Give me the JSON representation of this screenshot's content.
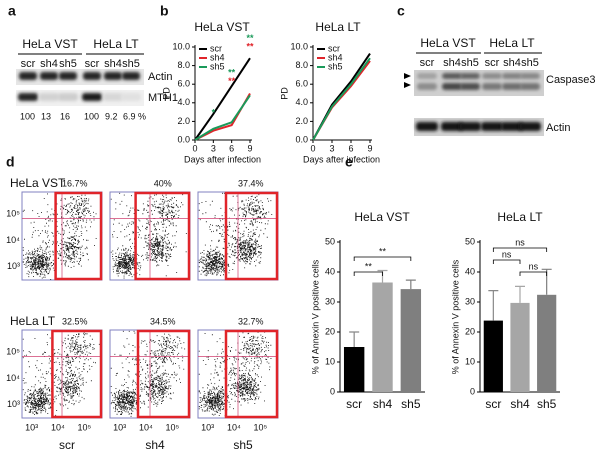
{
  "panel_a": {
    "label": "a",
    "groups": [
      "HeLa VST",
      "HeLa LT"
    ],
    "lanes": [
      "scr",
      "sh4",
      "sh5",
      "scr",
      "sh4",
      "sh5"
    ],
    "bands": [
      "Actin",
      "MTH1"
    ],
    "quantification": [
      "100",
      "13",
      "16",
      "100",
      "9.2",
      "6.9 %"
    ]
  },
  "panel_b": {
    "label": "b"
  },
  "panel_c": {
    "label": "c",
    "groups": [
      "HeLa VST",
      "HeLa LT"
    ],
    "lanes": [
      "scr",
      "sh4",
      "sh5",
      "scr",
      "sh4",
      "sh5"
    ],
    "bands": [
      "Caspase3",
      "Actin"
    ]
  },
  "panel_d": {
    "label": "d",
    "rows": [
      {
        "title": "HeLa VST",
        "percentages": [
          "16.7%",
          "40%",
          "37.4%"
        ]
      },
      {
        "title": "HeLa LT",
        "percentages": [
          "32.5%",
          "34.5%",
          "32.7%"
        ]
      }
    ],
    "columns": [
      "scr",
      "sh4",
      "sh5"
    ],
    "axis_ticks": [
      "10³",
      "10⁴",
      "10⁵"
    ]
  },
  "panel_e": {
    "label": "e"
  },
  "chart_data": [
    {
      "type": "line",
      "title": "HeLa VST",
      "x_label": "Days after infection",
      "y_label": "PD",
      "x": [
        0,
        3,
        6,
        9
      ],
      "xlim": [
        0,
        9
      ],
      "xticks": [
        0,
        3,
        6,
        9
      ],
      "ylim": [
        0,
        10
      ],
      "yticks": [
        {
          "value": 0,
          "label": "0.0"
        },
        {
          "value": 2,
          "label": "2.0"
        },
        {
          "value": 4,
          "label": "4.0"
        },
        {
          "value": 6,
          "label": "6.0"
        },
        {
          "value": 8,
          "label": "8.0"
        },
        {
          "value": 10,
          "label": "10.0"
        }
      ],
      "series": [
        {
          "name": "scr",
          "color": "#000000",
          "values": [
            0,
            2.8,
            5.8,
            8.8
          ]
        },
        {
          "name": "sh4",
          "color": "#e0242a",
          "values": [
            0,
            1.0,
            1.6,
            5.0
          ]
        },
        {
          "name": "sh5",
          "color": "#1a9a5a",
          "values": [
            0,
            1.2,
            1.9,
            4.8
          ]
        }
      ],
      "annotations": [
        "*",
        "**",
        "**",
        "**",
        "**"
      ]
    },
    {
      "type": "line",
      "title": "HeLa LT",
      "x_label": "Days after infection",
      "y_label": "PD",
      "x": [
        0,
        3,
        6,
        9
      ],
      "xlim": [
        0,
        9
      ],
      "xticks": [
        0,
        3,
        6,
        9
      ],
      "ylim": [
        0,
        10
      ],
      "yticks": [
        {
          "value": 0,
          "label": "0.0"
        },
        {
          "value": 2,
          "label": "2.0"
        },
        {
          "value": 4,
          "label": "4.0"
        },
        {
          "value": 6,
          "label": "6.0"
        },
        {
          "value": 8,
          "label": "8.0"
        },
        {
          "value": 10,
          "label": "10.0"
        }
      ],
      "series": [
        {
          "name": "scr",
          "color": "#000000",
          "values": [
            0,
            3.8,
            6.3,
            9.3
          ]
        },
        {
          "name": "sh4",
          "color": "#e0242a",
          "values": [
            0,
            3.5,
            5.8,
            8.5
          ]
        },
        {
          "name": "sh5",
          "color": "#1a9a5a",
          "values": [
            0,
            3.6,
            6.0,
            8.8
          ]
        }
      ]
    },
    {
      "type": "bar",
      "title": "HeLa VST",
      "y_label": "% of Annexin V positive cells",
      "categories": [
        "scr",
        "sh4",
        "sh5"
      ],
      "values": [
        15,
        36.5,
        34.3
      ],
      "errors": [
        5,
        4,
        3
      ],
      "colors": [
        "#000000",
        "#a6a6a6",
        "#7f7f7f"
      ],
      "ylim": [
        0,
        50
      ],
      "yticks": [
        0,
        10,
        20,
        30,
        40,
        50
      ],
      "significance": [
        "**",
        "**"
      ]
    },
    {
      "type": "bar",
      "title": "HeLa LT",
      "y_label": "% of Annexin V positive cells",
      "categories": [
        "scr",
        "sh4",
        "sh5"
      ],
      "values": [
        23.8,
        29.7,
        32.4
      ],
      "errors": [
        10,
        5.5,
        8.5
      ],
      "colors": [
        "#000000",
        "#a6a6a6",
        "#7f7f7f"
      ],
      "ylim": [
        0,
        50
      ],
      "yticks": [
        0,
        10,
        20,
        30,
        40,
        50
      ],
      "significance": [
        "ns",
        "ns",
        "ns"
      ]
    }
  ]
}
